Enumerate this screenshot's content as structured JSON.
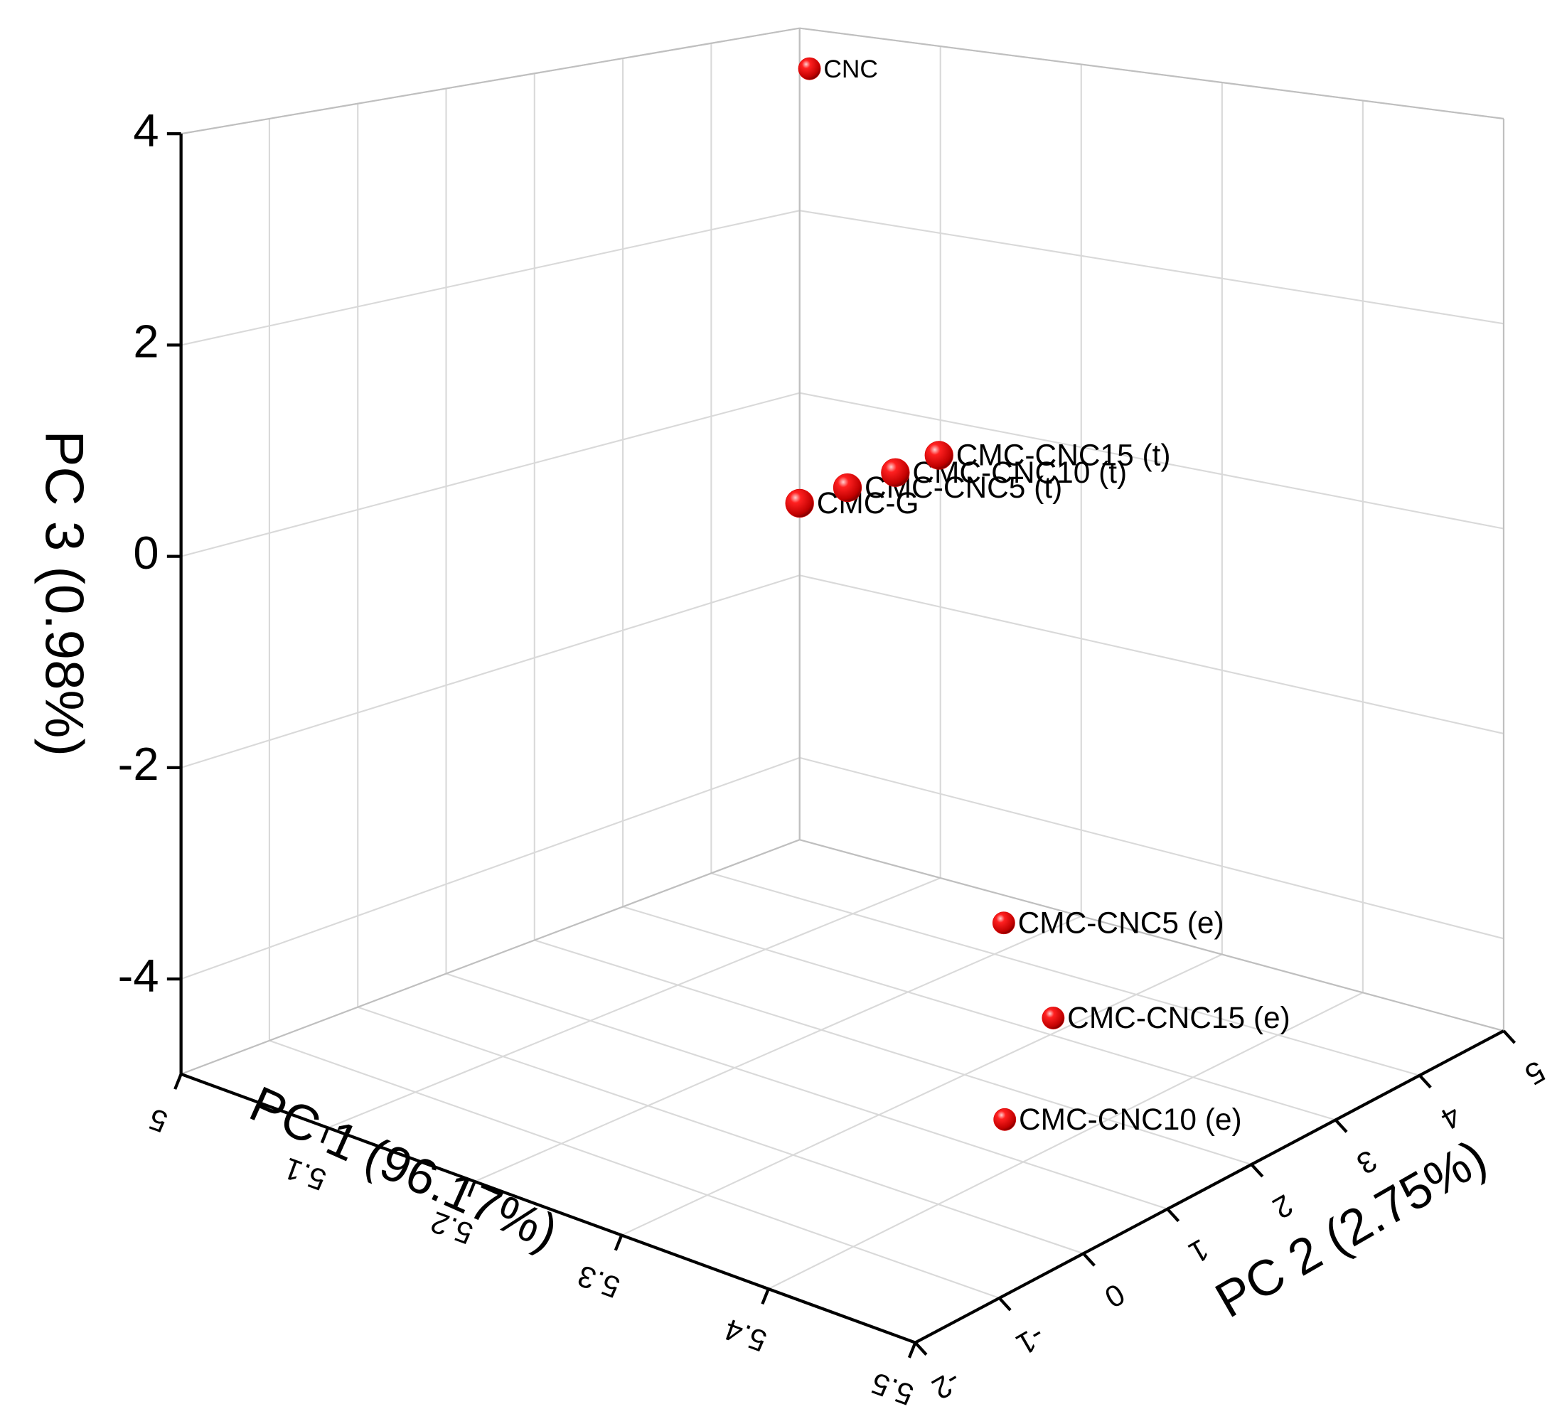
{
  "chart_data": {
    "type": "scatter3d",
    "x_label": "PC 1 (96.17%)",
    "y_label": "PC 2 (2.75%)",
    "z_label": "PC 3 (0.98%)",
    "labels": [
      "CNC",
      "CMC-G",
      "CMC-CNC5 (t)",
      "CMC-CNC10 (t)",
      "CMC-CNC15 (t)",
      "CMC-CNC5 (e)",
      "CMC-CNC15 (e)",
      "CMC-CNC10 (e)"
    ],
    "x": [
      5.007,
      5.0,
      5.034,
      5.068,
      5.099,
      5.357,
      5.412,
      5.44
    ],
    "y": [
      5,
      5,
      5,
      5,
      5,
      1.5,
      1.15,
      0.1
    ],
    "z": [
      3.57,
      -1.21,
      -0.93,
      -0.66,
      -0.38,
      -3.04,
      -3.58,
      -4.0
    ],
    "color": "#e00000",
    "xlim": [
      5,
      5.5
    ],
    "xticks": [
      5,
      5.1,
      5.2,
      5.3,
      5.4,
      5.5
    ],
    "ylim": [
      -2,
      5
    ],
    "yticks": [
      -2,
      -1,
      0,
      1,
      2,
      3,
      4,
      5
    ],
    "zlim": [
      -4.9,
      4
    ],
    "zticks": [
      -4,
      -2,
      0,
      2,
      4
    ],
    "grid": true
  }
}
